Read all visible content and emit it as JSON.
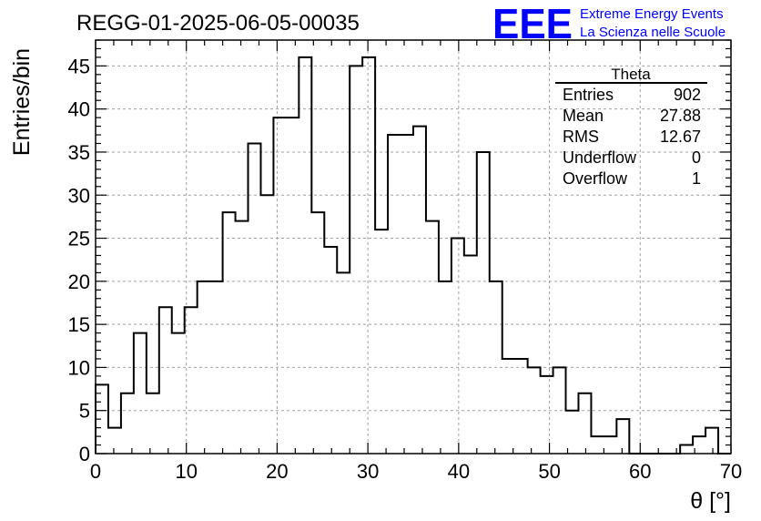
{
  "header": {
    "run_title": "REGG-01-2025-06-05-00035",
    "logo_text": "EEE",
    "logo_line1": "Extreme Energy Events",
    "logo_line2": "La Scienza nelle Scuole"
  },
  "stats_box": {
    "title": "Theta",
    "rows": [
      {
        "label": "Entries",
        "value": "902"
      },
      {
        "label": "Mean",
        "value": "27.88"
      },
      {
        "label": "RMS",
        "value": "12.67"
      },
      {
        "label": "Underflow",
        "value": "0"
      },
      {
        "label": "Overflow",
        "value": "1"
      }
    ]
  },
  "colors": {
    "logo": "#0000ff",
    "histogram_line": "#000000",
    "grid": "#a0a0a0"
  },
  "chart_data": {
    "type": "bar",
    "histogram_style": "step",
    "title": "",
    "xlabel": "θ [°]",
    "ylabel": "Entries/bin",
    "xlim": [
      0,
      70
    ],
    "ylim": [
      0,
      48
    ],
    "grid": true,
    "bin_width": 1.4,
    "bin_edges_start": 0,
    "values": [
      8,
      3,
      7,
      14,
      7,
      17,
      14,
      17,
      20,
      20,
      28,
      27,
      36,
      30,
      39,
      39,
      46,
      28,
      24,
      21,
      45,
      46,
      26,
      37,
      37,
      38,
      27,
      20,
      25,
      23,
      35,
      20,
      11,
      11,
      10,
      9,
      10,
      5,
      7,
      2,
      2,
      4,
      0,
      0,
      0,
      0,
      1,
      2,
      3,
      0
    ],
    "x_ticks": [
      "0",
      "10",
      "20",
      "30",
      "40",
      "50",
      "60",
      "70"
    ],
    "y_ticks": [
      "0",
      "5",
      "10",
      "15",
      "20",
      "25",
      "30",
      "35",
      "40",
      "45"
    ]
  }
}
